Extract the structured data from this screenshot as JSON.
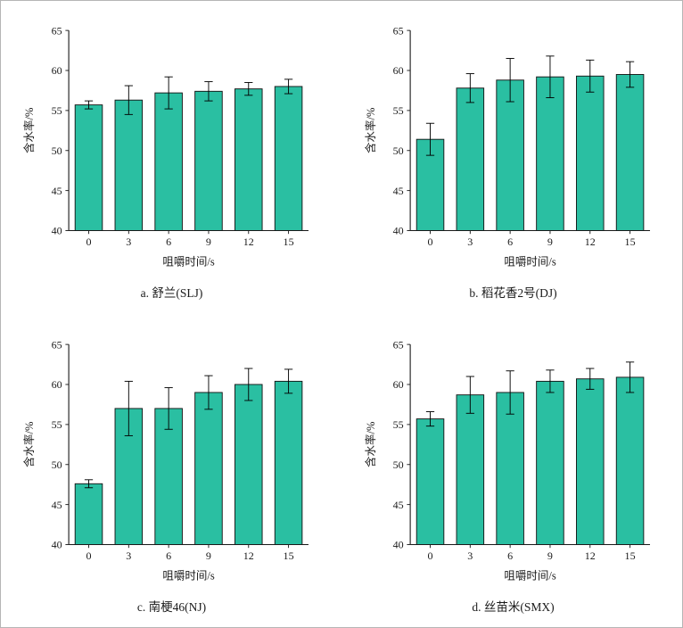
{
  "style": {
    "bar_fill": "#2abfa2",
    "bar_edge": "#141414",
    "axis_color": "#1a1a1a",
    "error_color": "#000000",
    "background": "#ffffff"
  },
  "chart_data": [
    {
      "type": "bar",
      "title": "a. 舒兰(SLJ)",
      "xlabel": "咀嚼时间/s",
      "ylabel": "含水率/%",
      "categories": [
        "0",
        "3",
        "6",
        "9",
        "12",
        "15"
      ],
      "values": [
        55.7,
        56.3,
        57.2,
        57.4,
        57.7,
        58.0
      ],
      "errors": [
        0.5,
        1.8,
        2.0,
        1.2,
        0.8,
        0.9
      ],
      "ylim": [
        40,
        65
      ],
      "ytick_step": 5,
      "grid": false,
      "legend": "none"
    },
    {
      "type": "bar",
      "title": "b. 稻花香2号(DJ)",
      "xlabel": "咀嚼时间/s",
      "ylabel": "含水率/%",
      "categories": [
        "0",
        "3",
        "6",
        "9",
        "12",
        "15"
      ],
      "values": [
        51.4,
        57.8,
        58.8,
        59.2,
        59.3,
        59.5
      ],
      "errors": [
        2.0,
        1.8,
        2.7,
        2.6,
        2.0,
        1.6
      ],
      "ylim": [
        40,
        65
      ],
      "ytick_step": 5,
      "grid": false,
      "legend": "none"
    },
    {
      "type": "bar",
      "title": "c. 南梗46(NJ)",
      "xlabel": "咀嚼时间/s",
      "ylabel": "含水率/%",
      "categories": [
        "0",
        "3",
        "6",
        "9",
        "12",
        "15"
      ],
      "values": [
        47.6,
        57.0,
        57.0,
        59.0,
        60.0,
        60.4
      ],
      "errors": [
        0.5,
        3.4,
        2.6,
        2.1,
        2.0,
        1.5
      ],
      "ylim": [
        40,
        65
      ],
      "ytick_step": 5,
      "grid": false,
      "legend": "none"
    },
    {
      "type": "bar",
      "title": "d. 丝苗米(SMX)",
      "xlabel": "咀嚼时间/s",
      "ylabel": "含水率/%",
      "categories": [
        "0",
        "3",
        "6",
        "9",
        "12",
        "15"
      ],
      "values": [
        55.7,
        58.7,
        59.0,
        60.4,
        60.7,
        60.9
      ],
      "errors": [
        0.9,
        2.3,
        2.7,
        1.4,
        1.3,
        1.9
      ],
      "ylim": [
        40,
        65
      ],
      "ytick_step": 5,
      "grid": false,
      "legend": "none"
    }
  ]
}
